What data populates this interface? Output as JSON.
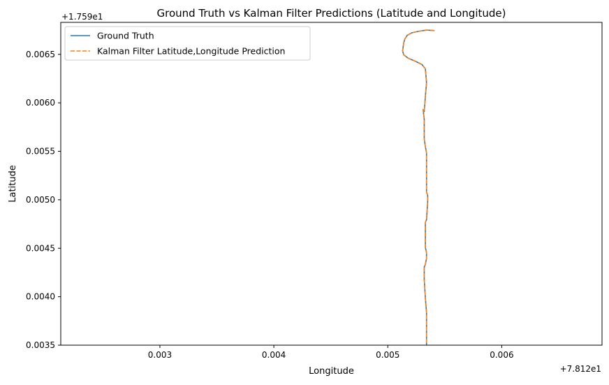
{
  "chart_data": {
    "type": "line",
    "title": "Ground Truth vs Kalman Filter Predictions (Latitude and Longitude)",
    "xlabel": "Longitude",
    "ylabel": "Latitude",
    "x_offset_label": "+7.812e1",
    "y_offset_label": "+1.759e1",
    "xlim": [
      0.00213,
      0.00688
    ],
    "ylim": [
      0.0035,
      0.00683
    ],
    "x_ticks": [
      0.003,
      0.004,
      0.005,
      0.006
    ],
    "x_tick_labels": [
      "0.003",
      "0.004",
      "0.005",
      "0.006"
    ],
    "y_ticks": [
      0.0035,
      0.004,
      0.0045,
      0.005,
      0.0055,
      0.006,
      0.0065
    ],
    "y_tick_labels": [
      "0.0035",
      "0.0040",
      "0.0045",
      "0.0050",
      "0.0055",
      "0.0060",
      "0.0065"
    ],
    "grid": false,
    "legend_position": "upper-left",
    "series": [
      {
        "name": "Ground Truth",
        "color": "#1f77b4",
        "style": "solid",
        "x": [
          0.00541,
          0.00534,
          0.00527,
          0.00521,
          0.00517,
          0.00515,
          0.00514,
          0.00513,
          0.00514,
          0.00518,
          0.00524,
          0.0053,
          0.00533,
          0.00534,
          0.00533,
          0.00532,
          0.00531,
          0.00532,
          0.00532,
          0.00533,
          0.00534,
          0.00534,
          0.00534,
          0.00535,
          0.00535,
          0.00534,
          0.00533,
          0.00533,
          0.00533,
          0.00534,
          0.00534,
          0.00533,
          0.00532,
          0.00532,
          0.00533,
          0.00534,
          0.00534,
          0.00534
        ],
        "y": [
          0.006745,
          0.00675,
          0.006738,
          0.006722,
          0.006695,
          0.00666,
          0.00662,
          0.006535,
          0.006495,
          0.00646,
          0.00643,
          0.006395,
          0.00635,
          0.006205,
          0.00607,
          0.00591,
          0.00593,
          0.00583,
          0.00563,
          0.005545,
          0.005485,
          0.00528,
          0.00508,
          0.005045,
          0.004975,
          0.004795,
          0.004765,
          0.004655,
          0.004505,
          0.004455,
          0.004395,
          0.004335,
          0.004305,
          0.00418,
          0.00398,
          0.00384,
          0.0037,
          0.0035
        ]
      },
      {
        "name": "Kalman Filter Latitude,Longitude Prediction",
        "color": "#ff7f0e",
        "style": "dashed",
        "x": [
          0.00541,
          0.00534,
          0.00527,
          0.00521,
          0.00517,
          0.00515,
          0.00514,
          0.00513,
          0.00514,
          0.00518,
          0.00524,
          0.0053,
          0.00533,
          0.00534,
          0.00533,
          0.00532,
          0.00531,
          0.00532,
          0.00532,
          0.00533,
          0.00534,
          0.00534,
          0.00534,
          0.00535,
          0.00535,
          0.00534,
          0.00533,
          0.00533,
          0.00533,
          0.00534,
          0.00534,
          0.00533,
          0.00532,
          0.00532,
          0.00533,
          0.00534,
          0.00534,
          0.00534
        ],
        "y": [
          0.006745,
          0.00675,
          0.006738,
          0.006722,
          0.006695,
          0.00666,
          0.00662,
          0.006535,
          0.006495,
          0.00646,
          0.00643,
          0.006395,
          0.00635,
          0.006205,
          0.00607,
          0.00591,
          0.00593,
          0.00583,
          0.00563,
          0.005545,
          0.005485,
          0.00528,
          0.00508,
          0.005045,
          0.004975,
          0.004795,
          0.004765,
          0.004655,
          0.004505,
          0.004455,
          0.004395,
          0.004335,
          0.004305,
          0.00418,
          0.00398,
          0.00384,
          0.0037,
          0.0035
        ]
      }
    ]
  }
}
